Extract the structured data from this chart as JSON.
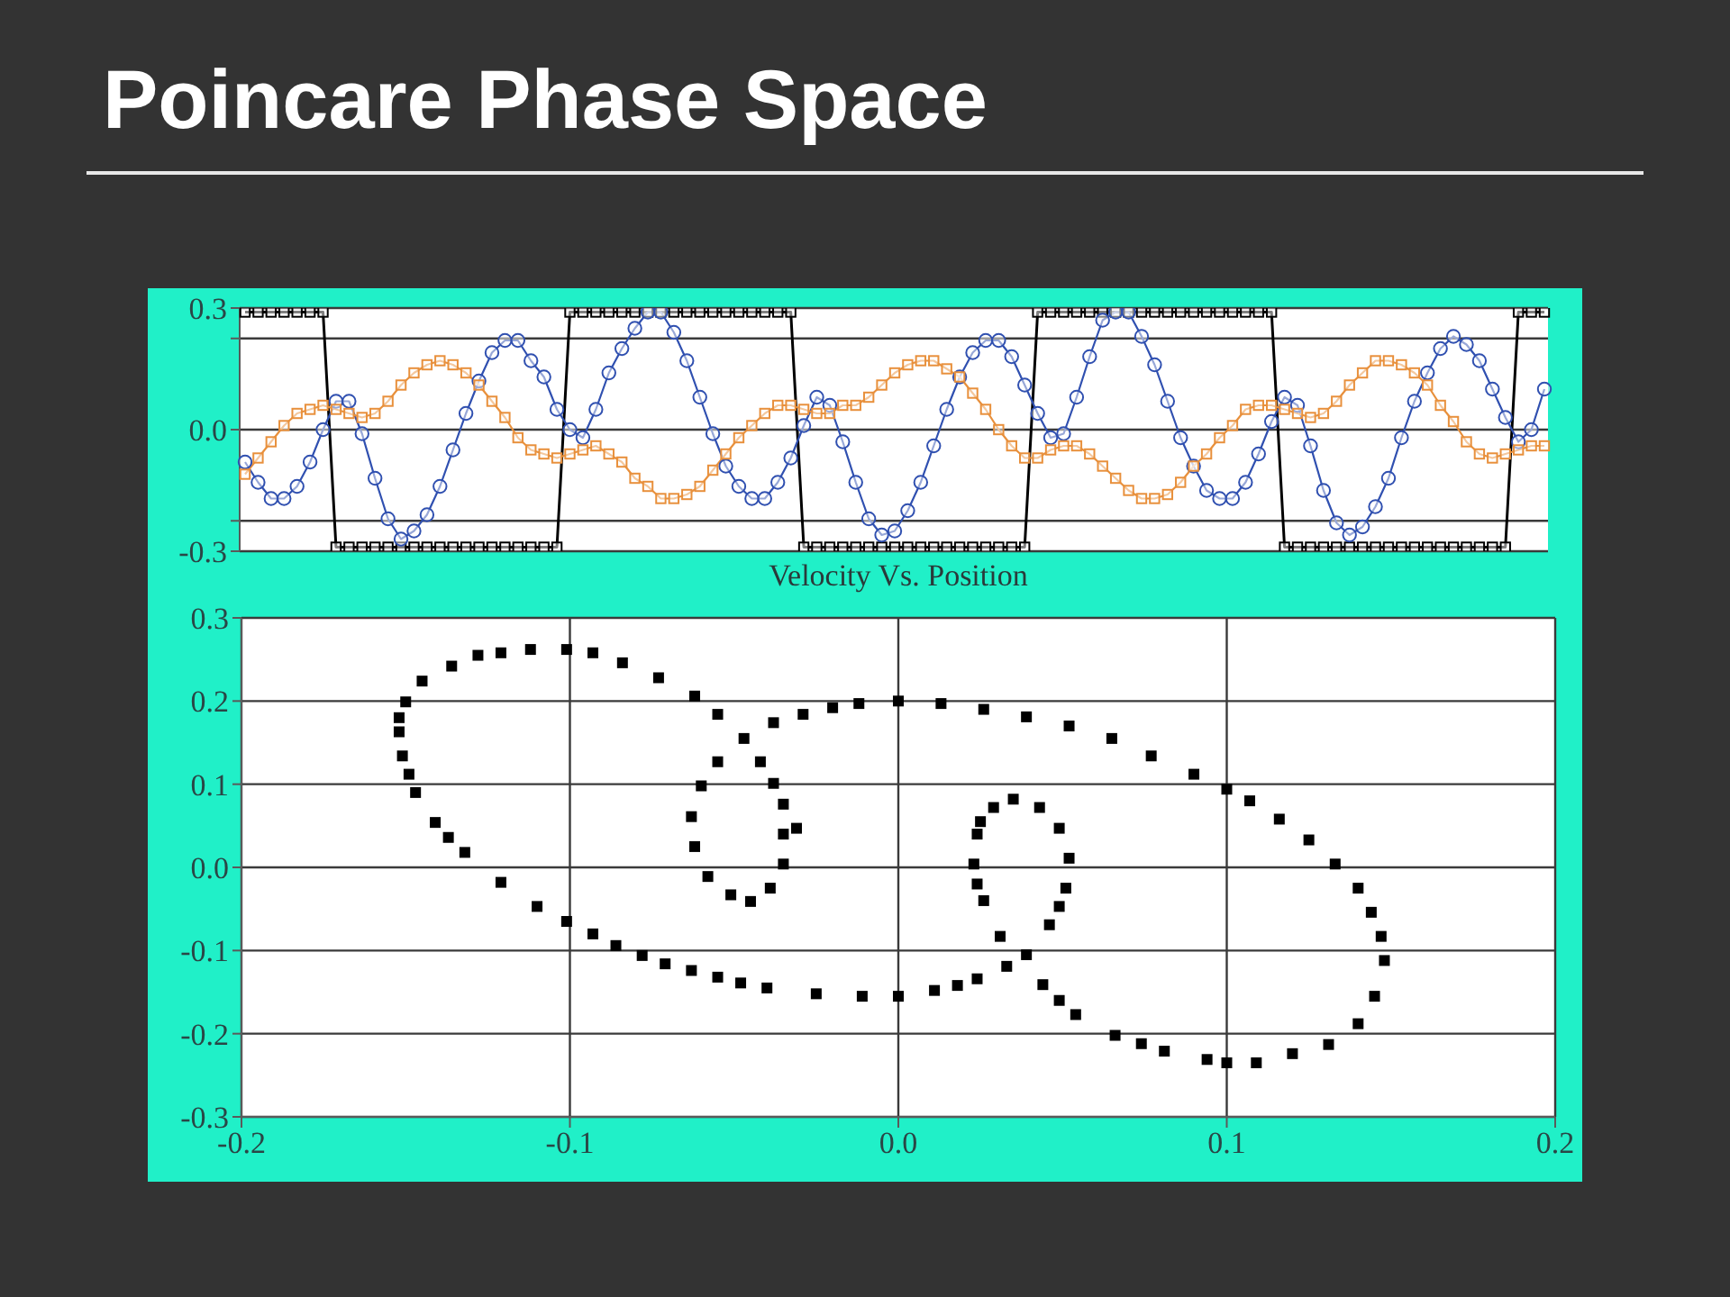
{
  "chart_data": [
    {
      "type": "line",
      "title": "Poincare Phase Space",
      "categories": [
        null,
        null,
        null,
        null,
        null,
        null,
        null,
        null,
        null,
        null,
        null,
        null,
        null,
        null,
        null,
        null,
        null,
        null,
        null,
        null,
        null,
        null,
        null,
        null,
        null,
        null,
        null,
        null,
        null,
        null,
        null,
        null,
        null,
        null,
        null,
        null,
        null,
        null,
        null,
        null,
        null,
        null,
        null,
        null,
        null,
        null,
        null,
        null,
        null,
        null,
        null,
        null,
        null,
        null,
        null,
        null,
        null,
        null,
        null,
        null,
        null,
        null,
        null,
        null,
        null,
        null,
        null,
        null,
        null,
        null,
        null,
        null,
        null,
        null,
        null,
        null,
        null,
        null,
        null,
        null,
        null,
        null,
        null,
        null,
        null,
        null,
        null,
        null,
        null,
        null,
        null,
        null,
        null,
        null,
        null,
        null,
        null,
        null,
        null,
        null,
        null
      ],
      "series": [
        {
          "color": "#000000",
          "marker": "square",
          "values": [
            0.29,
            0.29,
            0.29,
            0.29,
            0.29,
            0.29,
            0.29,
            -0.29,
            -0.29,
            -0.29,
            -0.29,
            -0.29,
            -0.29,
            -0.29,
            -0.29,
            -0.29,
            -0.29,
            -0.29,
            -0.29,
            -0.29,
            -0.29,
            -0.29,
            -0.29,
            -0.29,
            -0.29,
            0.29,
            0.29,
            0.29,
            0.29,
            0.29,
            0.29,
            0.29,
            0.29,
            0.29,
            0.29,
            0.29,
            0.29,
            0.29,
            0.29,
            0.29,
            0.29,
            0.29,
            0.29,
            -0.29,
            -0.29,
            -0.29,
            -0.29,
            -0.29,
            -0.29,
            -0.29,
            -0.29,
            -0.29,
            -0.29,
            -0.29,
            -0.29,
            -0.29,
            -0.29,
            -0.29,
            -0.29,
            -0.29,
            -0.29,
            0.29,
            0.29,
            0.29,
            0.29,
            0.29,
            0.29,
            0.29,
            0.29,
            0.29,
            0.29,
            0.29,
            0.29,
            0.29,
            0.29,
            0.29,
            0.29,
            0.29,
            0.29,
            0.29,
            -0.29,
            -0.29,
            -0.29,
            -0.29,
            -0.29,
            -0.29,
            -0.29,
            -0.29,
            -0.29,
            -0.29,
            -0.29,
            -0.29,
            -0.29,
            -0.29,
            -0.29,
            -0.29,
            -0.29,
            -0.29,
            0.29,
            0.29,
            0.29
          ]
        },
        {
          "color": "#3050b0",
          "marker": "circle",
          "values": [
            -0.08,
            -0.13,
            -0.17,
            -0.17,
            -0.14,
            -0.08,
            0.0,
            0.07,
            0.07,
            -0.01,
            -0.12,
            -0.22,
            -0.27,
            -0.25,
            -0.21,
            -0.14,
            -0.05,
            0.04,
            0.12,
            0.19,
            0.22,
            0.22,
            0.17,
            0.13,
            0.05,
            0.0,
            -0.02,
            0.05,
            0.14,
            0.2,
            0.25,
            0.29,
            0.29,
            0.24,
            0.17,
            0.08,
            -0.01,
            -0.09,
            -0.14,
            -0.17,
            -0.17,
            -0.13,
            -0.07,
            0.01,
            0.08,
            0.06,
            -0.03,
            -0.13,
            -0.22,
            -0.26,
            -0.25,
            -0.2,
            -0.13,
            -0.04,
            0.05,
            0.13,
            0.19,
            0.22,
            0.22,
            0.18,
            0.11,
            0.04,
            -0.02,
            -0.01,
            0.08,
            0.18,
            0.27,
            0.29,
            0.29,
            0.23,
            0.16,
            0.07,
            -0.02,
            -0.09,
            -0.15,
            -0.17,
            -0.17,
            -0.13,
            -0.06,
            0.02,
            0.08,
            0.06,
            -0.04,
            -0.15,
            -0.23,
            -0.26,
            -0.24,
            -0.19,
            -0.12,
            -0.02,
            0.07,
            0.14,
            0.2,
            0.23,
            0.21,
            0.17,
            0.1,
            0.03,
            -0.03,
            0.0,
            0.1
          ]
        },
        {
          "color": "#e8903c",
          "marker": "square",
          "values": [
            -0.11,
            -0.07,
            -0.03,
            0.01,
            0.04,
            0.05,
            0.06,
            0.05,
            0.04,
            0.03,
            0.04,
            0.07,
            0.11,
            0.14,
            0.16,
            0.17,
            0.16,
            0.14,
            0.11,
            0.07,
            0.03,
            -0.02,
            -0.05,
            -0.06,
            -0.07,
            -0.06,
            -0.05,
            -0.04,
            -0.06,
            -0.08,
            -0.12,
            -0.14,
            -0.17,
            -0.17,
            -0.16,
            -0.14,
            -0.1,
            -0.06,
            -0.02,
            0.01,
            0.04,
            0.06,
            0.06,
            0.05,
            0.04,
            0.04,
            0.06,
            0.06,
            0.08,
            0.11,
            0.14,
            0.16,
            0.17,
            0.17,
            0.15,
            0.13,
            0.09,
            0.05,
            0.0,
            -0.04,
            -0.07,
            -0.07,
            -0.05,
            -0.04,
            -0.04,
            -0.06,
            -0.09,
            -0.12,
            -0.15,
            -0.17,
            -0.17,
            -0.16,
            -0.13,
            -0.09,
            -0.06,
            -0.02,
            0.01,
            0.05,
            0.06,
            0.06,
            0.05,
            0.04,
            0.03,
            0.04,
            0.07,
            0.11,
            0.14,
            0.17,
            0.17,
            0.16,
            0.14,
            0.11,
            0.06,
            0.02,
            -0.03,
            -0.06,
            -0.07,
            -0.06,
            -0.05,
            -0.04,
            -0.04
          ]
        }
      ],
      "ylim": [
        -0.3,
        0.3
      ],
      "yticks": [
        -0.3,
        {
          "value": -0.225,
          "label": null
        },
        {
          "value": 0,
          "label": "0.0"
        },
        {
          "value": 0.225,
          "label": null
        },
        0.3
      ],
      "grid": "y",
      "tick_labels": "y"
    },
    {
      "type": "scatter",
      "title": "Velocity Vs. Position",
      "color": "#000000",
      "marker": "square",
      "x": [
        -0.101,
        -0.112,
        -0.121,
        -0.128,
        -0.136,
        -0.145,
        -0.15,
        -0.152,
        -0.152,
        -0.151,
        -0.149,
        -0.147,
        -0.141,
        -0.137,
        -0.132,
        -0.121,
        -0.11,
        -0.101,
        -0.093,
        -0.086,
        -0.078,
        -0.071,
        -0.063,
        -0.055,
        -0.048,
        -0.04,
        -0.025,
        -0.011,
        0.0,
        0.011,
        0.018,
        0.024,
        0.033,
        0.039,
        0.046,
        0.049,
        0.051,
        0.052,
        0.049,
        0.043,
        0.035,
        0.029,
        0.025,
        0.024,
        0.023,
        0.024,
        0.026,
        0.031,
        0.044,
        0.049,
        0.054,
        0.066,
        0.074,
        0.081,
        0.094,
        0.1,
        0.109,
        0.12,
        0.131,
        0.14,
        0.145,
        0.148,
        0.147,
        0.144,
        0.14,
        0.133,
        0.125,
        0.116,
        0.107,
        0.1,
        0.09,
        0.077,
        0.065,
        0.052,
        0.039,
        0.026,
        0.013,
        0.0,
        -0.012,
        -0.02,
        -0.029,
        -0.038,
        -0.047,
        -0.055,
        -0.06,
        -0.063,
        -0.062,
        -0.058,
        -0.051,
        -0.045,
        -0.039,
        -0.035,
        -0.035,
        -0.035,
        -0.038,
        -0.042,
        -0.055,
        -0.062,
        -0.073,
        -0.084,
        -0.093,
        -0.031
      ],
      "values": [
        0.262,
        0.262,
        0.258,
        0.255,
        0.242,
        0.224,
        0.199,
        0.18,
        0.163,
        0.134,
        0.112,
        0.09,
        0.054,
        0.036,
        0.018,
        -0.018,
        -0.047,
        -0.065,
        -0.08,
        -0.094,
        -0.106,
        -0.116,
        -0.124,
        -0.132,
        -0.139,
        -0.145,
        -0.152,
        -0.155,
        -0.155,
        -0.148,
        -0.142,
        -0.134,
        -0.119,
        -0.105,
        -0.069,
        -0.047,
        -0.025,
        0.011,
        0.047,
        0.072,
        0.082,
        0.072,
        0.055,
        0.04,
        0.004,
        -0.02,
        -0.04,
        -0.083,
        -0.141,
        -0.16,
        -0.177,
        -0.202,
        -0.212,
        -0.221,
        -0.231,
        -0.235,
        -0.235,
        -0.224,
        -0.213,
        -0.188,
        -0.155,
        -0.112,
        -0.083,
        -0.054,
        -0.025,
        0.004,
        0.033,
        0.058,
        0.08,
        0.094,
        0.112,
        0.134,
        0.155,
        0.17,
        0.181,
        0.19,
        0.197,
        0.2,
        0.197,
        0.192,
        0.184,
        0.174,
        0.155,
        0.127,
        0.098,
        0.061,
        0.025,
        -0.011,
        -0.033,
        -0.041,
        -0.025,
        0.004,
        0.04,
        0.076,
        0.101,
        0.127,
        0.184,
        0.206,
        0.228,
        0.246,
        0.258,
        0.047
      ],
      "xlim": [
        -0.2,
        0.2
      ],
      "xticks": [
        -0.2,
        -0.1,
        {
          "value": 0,
          "label": "0.0"
        },
        0.1,
        0.2
      ],
      "ylim": [
        -0.3,
        0.3
      ],
      "yticks": [
        -0.3,
        -0.2,
        -0.1,
        {
          "value": 0,
          "label": "0.0"
        },
        0.1,
        0.2,
        0.3
      ],
      "grid": true
    }
  ]
}
